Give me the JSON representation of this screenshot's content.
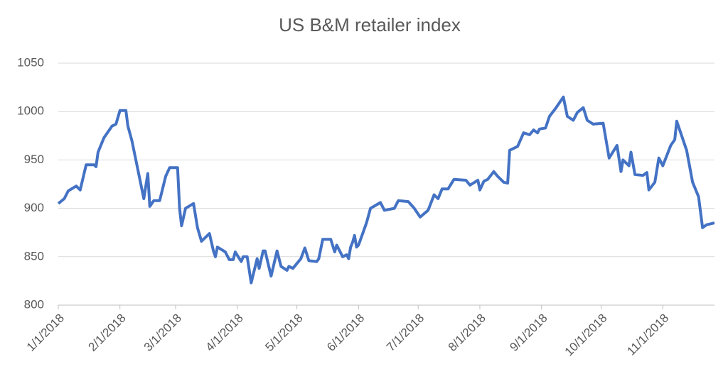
{
  "chart_data": {
    "type": "line",
    "title": "US B&M retailer index",
    "color": "#4472c4",
    "grid": true,
    "x": [
      "2018-01-01",
      "2018-01-04",
      "2018-01-06",
      "2018-01-10",
      "2018-01-12",
      "2018-01-15",
      "2018-01-19",
      "2018-01-20",
      "2018-01-21",
      "2018-01-24",
      "2018-01-28",
      "2018-01-30",
      "2018-02-01",
      "2018-02-04",
      "2018-02-05",
      "2018-02-07",
      "2018-02-10",
      "2018-02-13",
      "2018-02-15",
      "2018-02-16",
      "2018-02-18",
      "2018-02-21",
      "2018-02-24",
      "2018-02-26",
      "2018-03-02",
      "2018-03-03",
      "2018-03-04",
      "2018-03-06",
      "2018-03-10",
      "2018-03-12",
      "2018-03-14",
      "2018-03-18",
      "2018-03-20",
      "2018-03-21",
      "2018-03-22",
      "2018-03-26",
      "2018-03-28",
      "2018-03-30",
      "2018-03-31",
      "2018-04-03",
      "2018-04-04",
      "2018-04-06",
      "2018-04-08",
      "2018-04-11",
      "2018-04-12",
      "2018-04-14",
      "2018-04-15",
      "2018-04-18",
      "2018-04-21",
      "2018-04-23",
      "2018-04-26",
      "2018-04-27",
      "2018-04-29",
      "2018-05-03",
      "2018-05-05",
      "2018-05-07",
      "2018-05-11",
      "2018-05-12",
      "2018-05-14",
      "2018-05-18",
      "2018-05-20",
      "2018-05-21",
      "2018-05-24",
      "2018-05-26",
      "2018-05-27",
      "2018-05-28",
      "2018-05-29",
      "2018-05-30",
      "2018-05-31",
      "2018-06-01",
      "2018-06-05",
      "2018-06-07",
      "2018-06-12",
      "2018-06-14",
      "2018-06-19",
      "2018-06-21",
      "2018-06-26",
      "2018-06-29",
      "2018-07-02",
      "2018-07-06",
      "2018-07-09",
      "2018-07-11",
      "2018-07-13",
      "2018-07-16",
      "2018-07-19",
      "2018-07-25",
      "2018-07-27",
      "2018-07-31",
      "2018-08-01",
      "2018-08-03",
      "2018-08-05",
      "2018-08-08",
      "2018-08-10",
      "2018-08-13",
      "2018-08-15",
      "2018-08-16",
      "2018-08-20",
      "2018-08-23",
      "2018-08-26",
      "2018-08-28",
      "2018-08-30",
      "2018-08-31",
      "2018-09-03",
      "2018-09-05",
      "2018-09-08",
      "2018-09-12",
      "2018-09-14",
      "2018-09-17",
      "2018-09-19",
      "2018-09-22",
      "2018-09-24",
      "2018-09-27",
      "2018-10-02",
      "2018-10-05",
      "2018-10-09",
      "2018-10-11",
      "2018-10-12",
      "2018-10-15",
      "2018-10-16",
      "2018-10-18",
      "2018-10-22",
      "2018-10-24",
      "2018-10-25",
      "2018-10-28",
      "2018-10-30",
      "2018-11-01",
      "2018-11-05",
      "2018-11-07",
      "2018-11-08",
      "2018-11-13",
      "2018-11-16",
      "2018-11-19",
      "2018-11-21",
      "2018-11-23",
      "2018-11-27"
    ],
    "values": [
      905,
      910,
      918,
      923,
      919,
      945,
      945,
      943,
      958,
      973,
      985,
      987,
      1001,
      1001,
      985,
      970,
      940,
      910,
      936,
      902,
      908,
      908,
      933,
      942,
      942,
      900,
      882,
      900,
      905,
      880,
      866,
      874,
      856,
      850,
      860,
      855,
      847,
      847,
      855,
      845,
      850,
      850,
      823,
      848,
      838,
      856,
      856,
      830,
      856,
      840,
      836,
      840,
      838,
      848,
      859,
      846,
      845,
      848,
      868,
      868,
      855,
      862,
      850,
      852,
      848,
      860,
      865,
      872,
      860,
      862,
      885,
      900,
      906,
      898,
      900,
      908,
      907,
      900,
      891,
      898,
      914,
      910,
      920,
      920,
      930,
      929,
      924,
      929,
      919,
      928,
      930,
      938,
      933,
      927,
      926,
      960,
      964,
      978,
      976,
      981,
      978,
      982,
      983,
      995,
      1003,
      1015,
      995,
      991,
      999,
      1004,
      991,
      987,
      988,
      952,
      965,
      938,
      950,
      944,
      958,
      935,
      934,
      937,
      919,
      927,
      952,
      944,
      965,
      971,
      990,
      960,
      927,
      912,
      880,
      883,
      885
    ],
    "xlim": [
      "2018-01-01",
      "2018-11-27"
    ],
    "xticks": [
      {
        "value": "2018-01-01",
        "label": "1/1/2018"
      },
      {
        "value": "2018-02-01",
        "label": "2/1/2018"
      },
      {
        "value": "2018-03-01",
        "label": "3/1/2018"
      },
      {
        "value": "2018-04-01",
        "label": "4/1/2018"
      },
      {
        "value": "2018-05-01",
        "label": "5/1/2018"
      },
      {
        "value": "2018-06-01",
        "label": "6/1/2018"
      },
      {
        "value": "2018-07-01",
        "label": "7/1/2018"
      },
      {
        "value": "2018-08-01",
        "label": "8/1/2018"
      },
      {
        "value": "2018-09-01",
        "label": "9/1/2018"
      },
      {
        "value": "2018-10-01",
        "label": "10/1/2018"
      },
      {
        "value": "2018-11-01",
        "label": "11/1/2018"
      }
    ],
    "ylim": [
      800,
      1050
    ],
    "yticks": [
      800,
      850,
      900,
      950,
      1000,
      1050
    ]
  }
}
